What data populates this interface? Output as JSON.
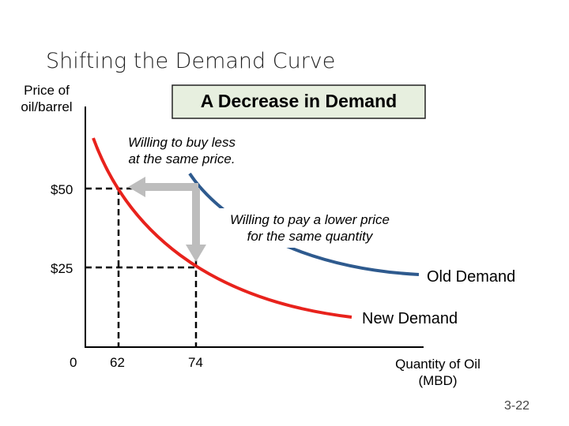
{
  "title": "Shifting the Demand Curve",
  "y_axis_label": [
    "Price of",
    "oil/barrel"
  ],
  "banner": "A Decrease in Demand",
  "annotations": [
    [
      "Willing to buy less",
      "at the same price."
    ],
    [
      "Willing to pay a lower price",
      "for the same quantity"
    ]
  ],
  "y_ticks": [
    "$50",
    "$25"
  ],
  "x_ticks": [
    "0",
    "62",
    "74"
  ],
  "x_axis_label": [
    "Quantity of Oil",
    "(MBD)"
  ],
  "curves": [
    "Old Demand",
    "New Demand"
  ],
  "slide_number": "3-22"
}
